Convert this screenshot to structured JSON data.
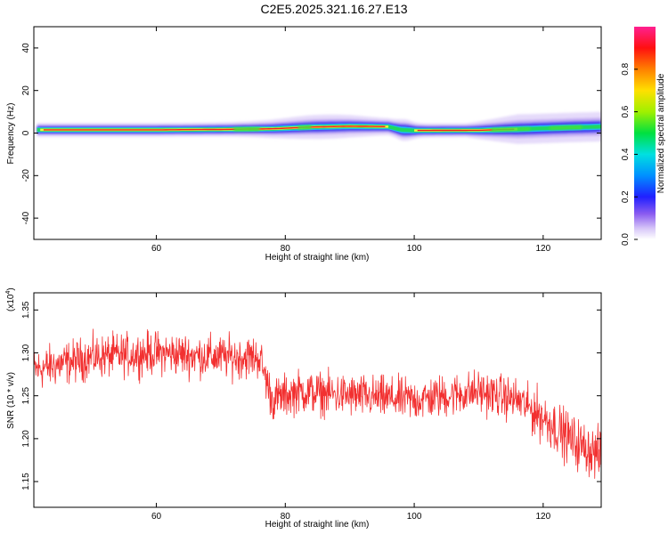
{
  "title": "C2E5.2025.321.16.27.E13",
  "chart_data": [
    {
      "type": "heatmap",
      "xlabel": "Height of straight line (km)",
      "ylabel": "Frequency (Hz)",
      "xlim": [
        41,
        129
      ],
      "ylim": [
        -50,
        50
      ],
      "x_ticks": [
        60,
        80,
        100,
        120
      ],
      "y_ticks": [
        -40,
        -20,
        0,
        20,
        40
      ],
      "colorbar": {
        "label": "Normalized spectral amplitude",
        "range": [
          0,
          1
        ],
        "ticks": [
          "0.0",
          "0.2",
          "0.4",
          "0.6",
          "0.8"
        ]
      },
      "band_center_hz": [
        [
          41.5,
          1.5
        ],
        [
          60,
          1.5
        ],
        [
          70,
          1.7
        ],
        [
          78,
          2.0
        ],
        [
          84,
          2.8
        ],
        [
          90,
          3.2
        ],
        [
          96,
          3.0
        ],
        [
          98,
          1.5
        ],
        [
          100,
          1.2
        ],
        [
          110,
          1.3
        ],
        [
          118,
          2.0
        ],
        [
          124,
          2.6
        ],
        [
          129,
          3.0
        ]
      ],
      "peak_ridge_segments_km": [
        [
          42,
          96
        ],
        [
          100,
          116
        ]
      ]
    },
    {
      "type": "line",
      "xlabel": "Height of straight line (km)",
      "ylabel": "SNR (10 * v/v)",
      "y_multiplier": "(x10^4)",
      "xlim": [
        41,
        129
      ],
      "ylim": [
        1.12,
        1.37
      ],
      "x_ticks": [
        60,
        80,
        100,
        120
      ],
      "y_ticks": [
        1.15,
        1.2,
        1.25,
        1.3,
        1.35
      ],
      "color": "#f23030",
      "trend": [
        [
          41,
          1.28
        ],
        [
          50,
          1.295
        ],
        [
          60,
          1.3
        ],
        [
          70,
          1.295
        ],
        [
          76,
          1.295
        ],
        [
          78,
          1.245
        ],
        [
          82,
          1.255
        ],
        [
          90,
          1.25
        ],
        [
          100,
          1.245
        ],
        [
          110,
          1.255
        ],
        [
          116,
          1.245
        ],
        [
          120,
          1.225
        ],
        [
          125,
          1.195
        ],
        [
          129,
          1.18
        ]
      ],
      "noise_amplitude": 0.028
    }
  ]
}
